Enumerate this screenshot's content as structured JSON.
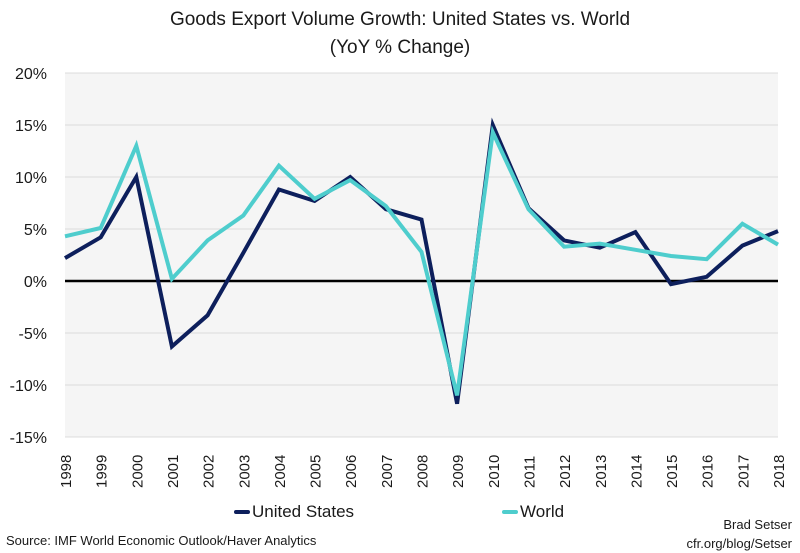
{
  "chart_data": {
    "type": "line",
    "title": "Goods Export Volume Growth: United States vs. World",
    "subtitle": "(YoY % Change)",
    "xlabel": "",
    "ylabel": "",
    "x": [
      "1998",
      "1999",
      "2000",
      "2001",
      "2002",
      "2003",
      "2004",
      "2005",
      "2006",
      "2007",
      "2008",
      "2009",
      "2010",
      "2011",
      "2012",
      "2013",
      "2014",
      "2015",
      "2016",
      "2017",
      "2018"
    ],
    "series": [
      {
        "name": "United States",
        "color": "#0d1f5c",
        "values": [
          2.2,
          4.2,
          10.0,
          -6.3,
          -3.3,
          2.7,
          8.8,
          7.7,
          10.0,
          6.9,
          5.9,
          -11.8,
          15.0,
          7.0,
          3.9,
          3.2,
          4.7,
          -0.3,
          0.4,
          3.4,
          4.8
        ]
      },
      {
        "name": "World",
        "color": "#4ecdcd",
        "values": [
          4.3,
          5.1,
          13.0,
          0.2,
          3.9,
          6.3,
          11.1,
          7.9,
          9.7,
          7.2,
          2.8,
          -11.0,
          14.3,
          6.9,
          3.3,
          3.6,
          3.0,
          2.4,
          2.1,
          5.5,
          3.5
        ]
      }
    ],
    "ylim": [
      -15,
      20
    ],
    "yticks": [
      20,
      15,
      10,
      5,
      0,
      -5,
      -10,
      -15
    ],
    "ytick_labels": [
      "20%",
      "15%",
      "10%",
      "5%",
      "0%",
      "-5%",
      "-10%",
      "-15%"
    ],
    "grid": true,
    "zero_line": true,
    "legend_position": "bottom",
    "plot_background": "#f5f5f5"
  },
  "footer": {
    "source": "Source: IMF World Economic Outlook/Haver Analytics",
    "author": "Brad Setser",
    "url": "cfr.org/blog/Setser"
  }
}
